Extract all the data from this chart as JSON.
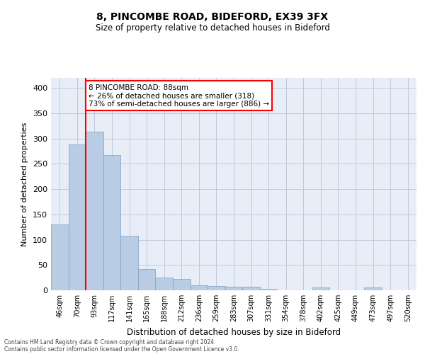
{
  "title1": "8, PINCOMBE ROAD, BIDEFORD, EX39 3FX",
  "title2": "Size of property relative to detached houses in Bideford",
  "xlabel": "Distribution of detached houses by size in Bideford",
  "ylabel": "Number of detached properties",
  "categories": [
    "46sqm",
    "70sqm",
    "93sqm",
    "117sqm",
    "141sqm",
    "165sqm",
    "188sqm",
    "212sqm",
    "236sqm",
    "259sqm",
    "283sqm",
    "307sqm",
    "331sqm",
    "354sqm",
    "378sqm",
    "402sqm",
    "425sqm",
    "449sqm",
    "473sqm",
    "497sqm",
    "520sqm"
  ],
  "values": [
    130,
    288,
    313,
    268,
    108,
    42,
    25,
    22,
    10,
    9,
    7,
    7,
    3,
    0,
    0,
    5,
    0,
    0,
    5,
    0,
    0
  ],
  "bar_color": "#b8cce4",
  "bar_edgecolor": "#7b9fc7",
  "redline_index": 2,
  "annotation_text": "8 PINCOMBE ROAD: 88sqm\n← 26% of detached houses are smaller (318)\n73% of semi-detached houses are larger (886) →",
  "annotation_box_color": "white",
  "annotation_box_edgecolor": "red",
  "redline_color": "red",
  "grid_color": "#c0c8d8",
  "bg_color": "#e8eef7",
  "footer1": "Contains HM Land Registry data © Crown copyright and database right 2024.",
  "footer2": "Contains public sector information licensed under the Open Government Licence v3.0.",
  "ylim": [
    0,
    420
  ],
  "yticks": [
    0,
    50,
    100,
    150,
    200,
    250,
    300,
    350,
    400
  ]
}
